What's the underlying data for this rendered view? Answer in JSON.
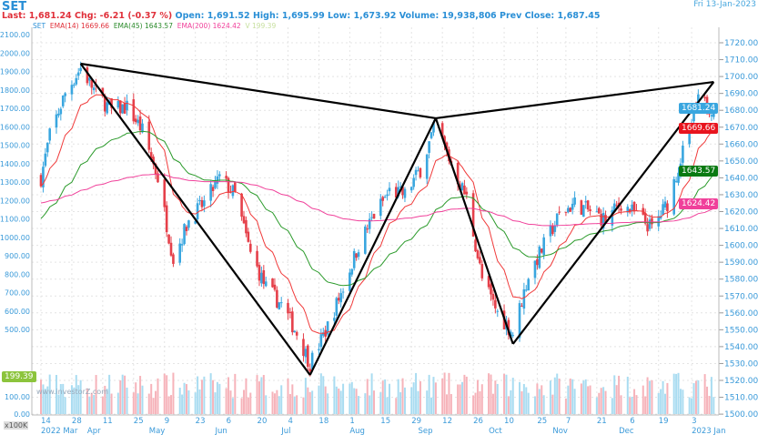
{
  "header": {
    "symbol": "SET",
    "date": "Fri 13-Jan-2023",
    "last_label": "Last:",
    "last": "1,681.24",
    "chg_label": "Chg:",
    "chg": "-6.21 (-0.37 %)",
    "open_label": "Open:",
    "open": "1,691.52",
    "high_label": "High:",
    "high": "1,695.99",
    "low_label": "Low:",
    "low": "1,673.92",
    "volume_label": "Volume:",
    "volume": "19,938,806",
    "prev_label": "Prev Close:",
    "prev": "1,687.45"
  },
  "legend": {
    "set": "SET",
    "ema14_label": "EMA(14)",
    "ema14": "1669.66",
    "ema45_label": "EMA(45)",
    "ema45": "1643.57",
    "ema200_label": "EMA(200)",
    "ema200": "1624.42",
    "vol_label": "V",
    "vol": "199.39"
  },
  "colors": {
    "up": "#39a6df",
    "down": "#e5404a",
    "vol_up": "#a9dcf1",
    "vol_down": "#f6b3ba",
    "ema14": "#f03a3a",
    "ema45": "#2a9a2a",
    "ema200": "#f0409a",
    "pattern": "#000000"
  },
  "badges": {
    "last": "1681.24",
    "ema14": "1669.66",
    "ema45": "1643.57",
    "ema200": "1624.42",
    "volume": "199.39"
  },
  "watermark": "www.investorZ.com",
  "unit_label": "x100K",
  "chart_data": {
    "type": "candlestick",
    "right_axis": {
      "min": 1500,
      "max": 1720,
      "step": 10,
      "ticks": [
        "1720.00",
        "1710.00",
        "1700.00",
        "1690.00",
        "1680.00",
        "1670.00",
        "1660.00",
        "1650.00",
        "1640.00",
        "1630.00",
        "1620.00",
        "1610.00",
        "1600.00",
        "1590.00",
        "1580.00",
        "1570.00",
        "1560.00",
        "1550.00",
        "1540.00",
        "1530.00",
        "1520.00",
        "1510.00",
        "1500.00"
      ]
    },
    "left_axis": {
      "ticks": [
        "2100.00",
        "2000.00",
        "1900.00",
        "1800.00",
        "1700.00",
        "1600.00",
        "1500.00",
        "1400.00",
        "1300.00",
        "1200.00",
        "1100.00",
        "1000.00",
        "900.00",
        "800.00",
        "700.00",
        "600.00",
        "500.00",
        "100.00",
        "0.00"
      ]
    },
    "x_day_ticks": [
      [
        "2022-03-14",
        "14"
      ],
      [
        "2022-03-28",
        "28"
      ],
      [
        "2022-04-11",
        "11"
      ],
      [
        "2022-04-25",
        "25"
      ],
      [
        "2022-05-09",
        "9"
      ],
      [
        "2022-05-23",
        "23"
      ],
      [
        "2022-06-06",
        "6"
      ],
      [
        "2022-06-20",
        "20"
      ],
      [
        "2022-07-04",
        "4"
      ],
      [
        "2022-07-18",
        "18"
      ],
      [
        "2022-08-01",
        "1"
      ],
      [
        "2022-08-15",
        "15"
      ],
      [
        "2022-08-29",
        "29"
      ],
      [
        "2022-09-12",
        "12"
      ],
      [
        "2022-09-26",
        "26"
      ],
      [
        "2022-10-10",
        "10"
      ],
      [
        "2022-10-25",
        "25"
      ],
      [
        "2022-11-07",
        "7"
      ],
      [
        "2022-11-21",
        "21"
      ],
      [
        "2022-12-06",
        "6"
      ],
      [
        "2022-12-19",
        "19"
      ],
      [
        "2023-01-03",
        "3"
      ]
    ],
    "x_month_ticks": [
      [
        "2022-03-14",
        "2022 Mar"
      ],
      [
        "2022-04-04",
        "Apr"
      ],
      [
        "2022-05-02",
        "May"
      ],
      [
        "2022-06-01",
        "Jun"
      ],
      [
        "2022-07-01",
        "Jul"
      ],
      [
        "2022-08-01",
        "Aug"
      ],
      [
        "2022-09-01",
        "Sep"
      ],
      [
        "2022-10-03",
        "Oct"
      ],
      [
        "2022-11-01",
        "Nov"
      ],
      [
        "2022-12-01",
        "Dec"
      ],
      [
        "2023-01-03",
        "2023 Jan"
      ]
    ],
    "weekly_close": [
      [
        "2022-03-14",
        1640
      ],
      [
        "2022-03-18",
        1665
      ],
      [
        "2022-03-25",
        1690
      ],
      [
        "2022-04-01",
        1705
      ],
      [
        "2022-04-08",
        1690
      ],
      [
        "2022-04-15",
        1680
      ],
      [
        "2022-04-22",
        1682
      ],
      [
        "2022-04-29",
        1668
      ],
      [
        "2022-05-06",
        1640
      ],
      [
        "2022-05-13",
        1592
      ],
      [
        "2022-05-20",
        1615
      ],
      [
        "2022-05-27",
        1625
      ],
      [
        "2022-06-03",
        1640
      ],
      [
        "2022-06-10",
        1630
      ],
      [
        "2022-06-17",
        1595
      ],
      [
        "2022-06-24",
        1575
      ],
      [
        "2022-07-01",
        1565
      ],
      [
        "2022-07-08",
        1548
      ],
      [
        "2022-07-14",
        1530
      ],
      [
        "2022-07-22",
        1552
      ],
      [
        "2022-07-29",
        1575
      ],
      [
        "2022-08-05",
        1600
      ],
      [
        "2022-08-12",
        1618
      ],
      [
        "2022-08-19",
        1632
      ],
      [
        "2022-08-26",
        1630
      ],
      [
        "2022-09-02",
        1645
      ],
      [
        "2022-09-09",
        1672
      ],
      [
        "2022-09-16",
        1648
      ],
      [
        "2022-09-23",
        1628
      ],
      [
        "2022-09-30",
        1580
      ],
      [
        "2022-10-07",
        1560
      ],
      [
        "2022-10-14",
        1548
      ],
      [
        "2022-10-21",
        1582
      ],
      [
        "2022-10-28",
        1600
      ],
      [
        "2022-11-04",
        1618
      ],
      [
        "2022-11-11",
        1625
      ],
      [
        "2022-11-18",
        1620
      ],
      [
        "2022-11-25",
        1615
      ],
      [
        "2022-12-02",
        1625
      ],
      [
        "2022-12-09",
        1618
      ],
      [
        "2022-12-16",
        1610
      ],
      [
        "2022-12-23",
        1625
      ],
      [
        "2022-12-30",
        1655
      ],
      [
        "2023-01-06",
        1685
      ],
      [
        "2023-01-13",
        1681.24
      ]
    ],
    "pattern_points": [
      [
        "2022-04-01",
        1707.6
      ],
      [
        "2022-07-14",
        1523.2
      ],
      [
        "2022-09-09",
        1675.3
      ],
      [
        "2022-10-14",
        1541.6
      ],
      [
        "2023-01-13",
        1696.8
      ]
    ],
    "grid": true
  }
}
